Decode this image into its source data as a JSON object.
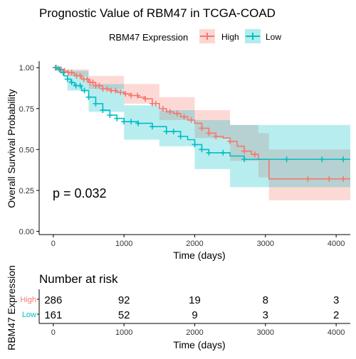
{
  "chart_data": [
    {
      "type": "line",
      "subtype": "kaplan-meier survival curve with confidence bands and censoring marks",
      "title": "Prognostic Value of RBM47 in TCGA-COAD",
      "xlabel": "Time (days)",
      "ylabel": "Overall Survival Probability",
      "xlim": [
        -200,
        4200
      ],
      "ylim": [
        -0.02,
        1.04
      ],
      "x_ticks": [
        0,
        1000,
        2000,
        3000,
        4000
      ],
      "y_ticks": [
        0.0,
        0.25,
        0.5,
        0.75,
        1.0
      ],
      "y_tick_labels": [
        "0.00",
        "0.25",
        "0.50",
        "0.75",
        "1.00"
      ],
      "grid": false,
      "legend": {
        "title": "RBM47 Expression",
        "placement": "top-center"
      },
      "annotation": "p = 0.032",
      "series": [
        {
          "name": "High",
          "color": "#F8766D",
          "band_color": "#F8766D",
          "steps": [
            [
              0,
              1.0
            ],
            [
              50,
              0.995
            ],
            [
              100,
              0.99
            ],
            [
              150,
              0.98
            ],
            [
              200,
              0.97
            ],
            [
              300,
              0.95
            ],
            [
              400,
              0.93
            ],
            [
              500,
              0.91
            ],
            [
              600,
              0.89
            ],
            [
              700,
              0.87
            ],
            [
              800,
              0.86
            ],
            [
              900,
              0.85
            ],
            [
              1000,
              0.84
            ],
            [
              1100,
              0.83
            ],
            [
              1200,
              0.82
            ],
            [
              1300,
              0.81
            ],
            [
              1400,
              0.78
            ],
            [
              1500,
              0.75
            ],
            [
              1600,
              0.73
            ],
            [
              1700,
              0.72
            ],
            [
              1800,
              0.7
            ],
            [
              1900,
              0.68
            ],
            [
              2000,
              0.66
            ],
            [
              2100,
              0.63
            ],
            [
              2200,
              0.6
            ],
            [
              2300,
              0.58
            ],
            [
              2400,
              0.57
            ],
            [
              2500,
              0.55
            ],
            [
              2600,
              0.52
            ],
            [
              2700,
              0.49
            ],
            [
              2800,
              0.47
            ],
            [
              2900,
              0.44
            ],
            [
              3050,
              0.32
            ],
            [
              4200,
              0.32
            ]
          ],
          "upper": [
            [
              0,
              1.0
            ],
            [
              200,
              0.99
            ],
            [
              500,
              0.95
            ],
            [
              1000,
              0.9
            ],
            [
              1500,
              0.82
            ],
            [
              2000,
              0.74
            ],
            [
              2500,
              0.65
            ],
            [
              2900,
              0.6
            ],
            [
              3050,
              0.5
            ],
            [
              4200,
              0.5
            ]
          ],
          "lower": [
            [
              0,
              1.0
            ],
            [
              200,
              0.95
            ],
            [
              500,
              0.87
            ],
            [
              1000,
              0.78
            ],
            [
              1500,
              0.68
            ],
            [
              2000,
              0.57
            ],
            [
              2500,
              0.43
            ],
            [
              2900,
              0.33
            ],
            [
              3050,
              0.19
            ],
            [
              4200,
              0.19
            ]
          ],
          "censor_x": [
            30,
            70,
            110,
            160,
            210,
            260,
            330,
            380,
            430,
            480,
            520,
            560,
            600,
            650,
            700,
            760,
            820,
            880,
            950,
            1020,
            1100,
            1190,
            1300,
            1400,
            1450,
            1550,
            1650,
            1750,
            1850,
            1950,
            2100,
            2200,
            2300,
            2500,
            2700,
            2850,
            3600,
            3900,
            4100
          ]
        },
        {
          "name": "Low",
          "color": "#00BFC4",
          "band_color": "#00BFC4",
          "steps": [
            [
              0,
              1.0
            ],
            [
              50,
              0.99
            ],
            [
              100,
              0.97
            ],
            [
              150,
              0.95
            ],
            [
              200,
              0.93
            ],
            [
              250,
              0.91
            ],
            [
              300,
              0.89
            ],
            [
              400,
              0.86
            ],
            [
              500,
              0.82
            ],
            [
              600,
              0.78
            ],
            [
              700,
              0.74
            ],
            [
              800,
              0.71
            ],
            [
              900,
              0.69
            ],
            [
              1000,
              0.67
            ],
            [
              1200,
              0.66
            ],
            [
              1400,
              0.64
            ],
            [
              1600,
              0.61
            ],
            [
              1800,
              0.58
            ],
            [
              1900,
              0.56
            ],
            [
              2000,
              0.53
            ],
            [
              2100,
              0.5
            ],
            [
              2200,
              0.48
            ],
            [
              2500,
              0.46
            ],
            [
              2700,
              0.44
            ],
            [
              4200,
              0.44
            ]
          ],
          "upper": [
            [
              0,
              1.0
            ],
            [
              200,
              0.98
            ],
            [
              500,
              0.9
            ],
            [
              1000,
              0.77
            ],
            [
              1500,
              0.74
            ],
            [
              2000,
              0.68
            ],
            [
              2500,
              0.65
            ],
            [
              4200,
              0.65
            ]
          ],
          "lower": [
            [
              0,
              1.0
            ],
            [
              200,
              0.86
            ],
            [
              500,
              0.73
            ],
            [
              1000,
              0.56
            ],
            [
              1500,
              0.52
            ],
            [
              2000,
              0.38
            ],
            [
              2500,
              0.27
            ],
            [
              4200,
              0.27
            ]
          ],
          "censor_x": [
            40,
            90,
            140,
            200,
            260,
            320,
            380,
            440,
            500,
            600,
            700,
            800,
            900,
            1000,
            1100,
            1200,
            1400,
            1600,
            1700,
            1800,
            2000,
            2100,
            2200,
            2400,
            2700,
            3300,
            3800,
            4100
          ]
        }
      ]
    },
    {
      "type": "table",
      "title": "Number at risk",
      "xlabel": "Time (days)",
      "ylabel": "RBM47 Expression",
      "x_ticks": [
        0,
        1000,
        2000,
        3000,
        4000
      ],
      "rows": [
        {
          "name": "High",
          "color": "#F8766D",
          "values": [
            286,
            92,
            19,
            8,
            3
          ]
        },
        {
          "name": "Low",
          "color": "#00BFC4",
          "values": [
            161,
            52,
            9,
            3,
            2
          ]
        }
      ]
    }
  ]
}
